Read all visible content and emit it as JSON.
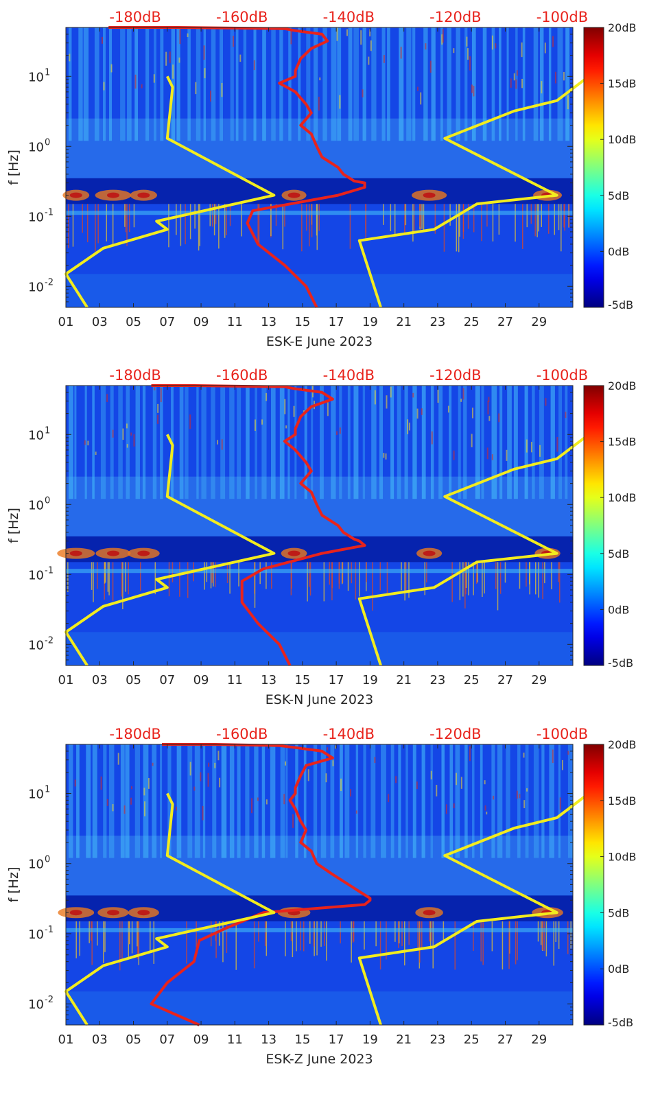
{
  "chart_data": [
    {
      "type": "heatmap",
      "title": "",
      "xlabel": "ESK-E June 2023",
      "ylabel": "f [Hz]",
      "x_tick_labels": [
        "01",
        "03",
        "05",
        "07",
        "09",
        "11",
        "13",
        "15",
        "17",
        "19",
        "21",
        "23",
        "25",
        "27",
        "29"
      ],
      "x_ticks_day": [
        1,
        3,
        5,
        7,
        9,
        11,
        13,
        15,
        17,
        19,
        21,
        23,
        25,
        27,
        29
      ],
      "x_range_day": [
        1,
        31
      ],
      "y_scale": "log",
      "y_range_hz": [
        0.005,
        50
      ],
      "y_tick_labels": [
        "10^-2",
        "10^-1",
        "10^0",
        "10^1"
      ],
      "y_ticks_hz": [
        0.01,
        0.1,
        1,
        10
      ],
      "top_axis_labels": [
        "-180dB",
        "-160dB",
        "-140dB",
        "-120dB",
        "-100dB"
      ],
      "top_axis_db": [
        -180,
        -160,
        -140,
        -120,
        -100
      ],
      "top_axis_range_db": [
        -193,
        -98
      ],
      "colorbar": {
        "range_db": [
          -5,
          20
        ],
        "tick_labels": [
          "20dB",
          "15dB",
          "10dB",
          "5dB",
          "0dB",
          "-5dB"
        ],
        "tick_values": [
          20,
          15,
          10,
          5,
          0,
          -5
        ]
      },
      "series": [
        {
          "name": "station-psd-median",
          "color": "#e8231c",
          "db_values": [
            -185,
            -172,
            -152,
            -150,
            -145,
            -144,
            -147,
            -149,
            -150,
            -150,
            -153,
            -150,
            -148,
            -147,
            -149,
            -147,
            -146,
            -145,
            -142,
            -141,
            -139,
            -137,
            -137,
            -142,
            -158,
            -159,
            -157,
            -152,
            -148,
            -146
          ],
          "freq_hz": [
            50,
            50,
            48,
            45,
            40,
            32,
            25,
            18,
            12,
            10,
            8,
            6,
            4,
            3,
            2,
            1.5,
            1,
            0.7,
            0.5,
            0.4,
            0.32,
            0.3,
            0.26,
            0.2,
            0.12,
            0.08,
            0.04,
            0.02,
            0.01,
            0.005
          ]
        },
        {
          "name": "noise-model-low",
          "color": "#f2ec1e",
          "db_values": [
            -174,
            -173,
            -174,
            -154,
            -176,
            -174,
            -186,
            -193,
            -189
          ],
          "freq_hz": [
            10,
            7,
            1.3,
            0.2,
            0.085,
            0.065,
            0.035,
            0.015,
            0.005
          ]
        },
        {
          "name": "noise-model-high",
          "color": "#f2ec1e",
          "db_values": [
            -95,
            -101,
            -109,
            -122,
            -101,
            -116,
            -124,
            -138,
            -134
          ],
          "freq_hz": [
            10,
            4.5,
            3.2,
            1.3,
            0.2,
            0.15,
            0.065,
            0.045,
            0.005
          ]
        }
      ]
    },
    {
      "type": "heatmap",
      "title": "",
      "xlabel": "ESK-N June 2023",
      "ylabel": "f [Hz]",
      "x_tick_labels": [
        "01",
        "03",
        "05",
        "07",
        "09",
        "11",
        "13",
        "15",
        "17",
        "19",
        "21",
        "23",
        "25",
        "27",
        "29"
      ],
      "x_ticks_day": [
        1,
        3,
        5,
        7,
        9,
        11,
        13,
        15,
        17,
        19,
        21,
        23,
        25,
        27,
        29
      ],
      "x_range_day": [
        1,
        31
      ],
      "y_scale": "log",
      "y_range_hz": [
        0.005,
        50
      ],
      "y_tick_labels": [
        "10^-2",
        "10^-1",
        "10^0",
        "10^1"
      ],
      "y_ticks_hz": [
        0.01,
        0.1,
        1,
        10
      ],
      "top_axis_labels": [
        "-180dB",
        "-160dB",
        "-140dB",
        "-120dB",
        "-100dB"
      ],
      "top_axis_db": [
        -180,
        -160,
        -140,
        -120,
        -100
      ],
      "top_axis_range_db": [
        -193,
        -98
      ],
      "colorbar": {
        "range_db": [
          -5,
          20
        ],
        "tick_labels": [
          "20dB",
          "15dB",
          "10dB",
          "5dB",
          "0dB",
          "-5dB"
        ],
        "tick_values": [
          20,
          15,
          10,
          5,
          0,
          -5
        ]
      },
      "series": [
        {
          "name": "station-psd-median",
          "color": "#e8231c",
          "db_values": [
            -177,
            -169,
            -152,
            -150,
            -145,
            -143,
            -147,
            -149,
            -150,
            -150,
            -152,
            -150,
            -148,
            -147,
            -149,
            -147,
            -146,
            -145,
            -142,
            -141,
            -139,
            -138,
            -137,
            -145,
            -156,
            -160,
            -160,
            -157,
            -153,
            -151
          ],
          "freq_hz": [
            50,
            50,
            48,
            45,
            40,
            32,
            25,
            18,
            12,
            10,
            8,
            6,
            4,
            3,
            2,
            1.5,
            1,
            0.7,
            0.5,
            0.4,
            0.32,
            0.3,
            0.26,
            0.2,
            0.12,
            0.08,
            0.04,
            0.02,
            0.01,
            0.005
          ]
        },
        {
          "name": "noise-model-low",
          "color": "#f2ec1e",
          "db_values": [
            -174,
            -173,
            -174,
            -154,
            -176,
            -174,
            -186,
            -193,
            -189
          ],
          "freq_hz": [
            10,
            7,
            1.3,
            0.2,
            0.085,
            0.065,
            0.035,
            0.015,
            0.005
          ]
        },
        {
          "name": "noise-model-high",
          "color": "#f2ec1e",
          "db_values": [
            -95,
            -101,
            -109,
            -122,
            -101,
            -116,
            -124,
            -138,
            -134
          ],
          "freq_hz": [
            10,
            4.5,
            3.2,
            1.3,
            0.2,
            0.15,
            0.065,
            0.045,
            0.005
          ]
        }
      ]
    },
    {
      "type": "heatmap",
      "title": "",
      "xlabel": "ESK-Z June 2023",
      "ylabel": "f [Hz]",
      "x_tick_labels": [
        "01",
        "03",
        "05",
        "07",
        "09",
        "11",
        "13",
        "15",
        "17",
        "19",
        "21",
        "23",
        "25",
        "27",
        "29"
      ],
      "x_ticks_day": [
        1,
        3,
        5,
        7,
        9,
        11,
        13,
        15,
        17,
        19,
        21,
        23,
        25,
        27,
        29
      ],
      "x_range_day": [
        1,
        31
      ],
      "y_scale": "log",
      "y_range_hz": [
        0.005,
        50
      ],
      "y_tick_labels": [
        "10^-2",
        "10^-1",
        "10^0",
        "10^1"
      ],
      "y_ticks_hz": [
        0.01,
        0.1,
        1,
        10
      ],
      "top_axis_labels": [
        "-180dB",
        "-160dB",
        "-140dB",
        "-120dB",
        "-100dB"
      ],
      "top_axis_db": [
        -180,
        -160,
        -140,
        -120,
        -100
      ],
      "top_axis_range_db": [
        -193,
        -98
      ],
      "colorbar": {
        "range_db": [
          -5,
          20
        ],
        "tick_labels": [
          "20dB",
          "15dB",
          "10dB",
          "5dB",
          "0dB",
          "-5dB"
        ],
        "tick_values": [
          20,
          15,
          10,
          5,
          0,
          -5
        ]
      },
      "series": [
        {
          "name": "station-psd-median",
          "color": "#e8231c",
          "db_values": [
            -175,
            -165,
            -153,
            -150,
            -145,
            -143,
            -148,
            -149,
            -150,
            -150,
            -151,
            -150,
            -149,
            -148,
            -149,
            -147,
            -146,
            -143,
            -140,
            -138,
            -136,
            -136,
            -137,
            -156,
            -163,
            -168,
            -169,
            -174,
            -177,
            -168
          ],
          "freq_hz": [
            50,
            50,
            48,
            45,
            40,
            32,
            25,
            18,
            12,
            10,
            8,
            6,
            4,
            3,
            2,
            1.5,
            1,
            0.7,
            0.5,
            0.4,
            0.32,
            0.3,
            0.26,
            0.2,
            0.12,
            0.08,
            0.04,
            0.02,
            0.01,
            0.005
          ]
        },
        {
          "name": "noise-model-low",
          "color": "#f2ec1e",
          "db_values": [
            -174,
            -173,
            -174,
            -154,
            -176,
            -174,
            -186,
            -193,
            -189
          ],
          "freq_hz": [
            10,
            7,
            1.3,
            0.2,
            0.085,
            0.065,
            0.035,
            0.015,
            0.005
          ]
        },
        {
          "name": "noise-model-high",
          "color": "#f2ec1e",
          "db_values": [
            -95,
            -101,
            -109,
            -122,
            -101,
            -116,
            -124,
            -138,
            -134
          ],
          "freq_hz": [
            10,
            4.5,
            3.2,
            1.3,
            0.2,
            0.15,
            0.065,
            0.045,
            0.005
          ]
        }
      ]
    }
  ]
}
